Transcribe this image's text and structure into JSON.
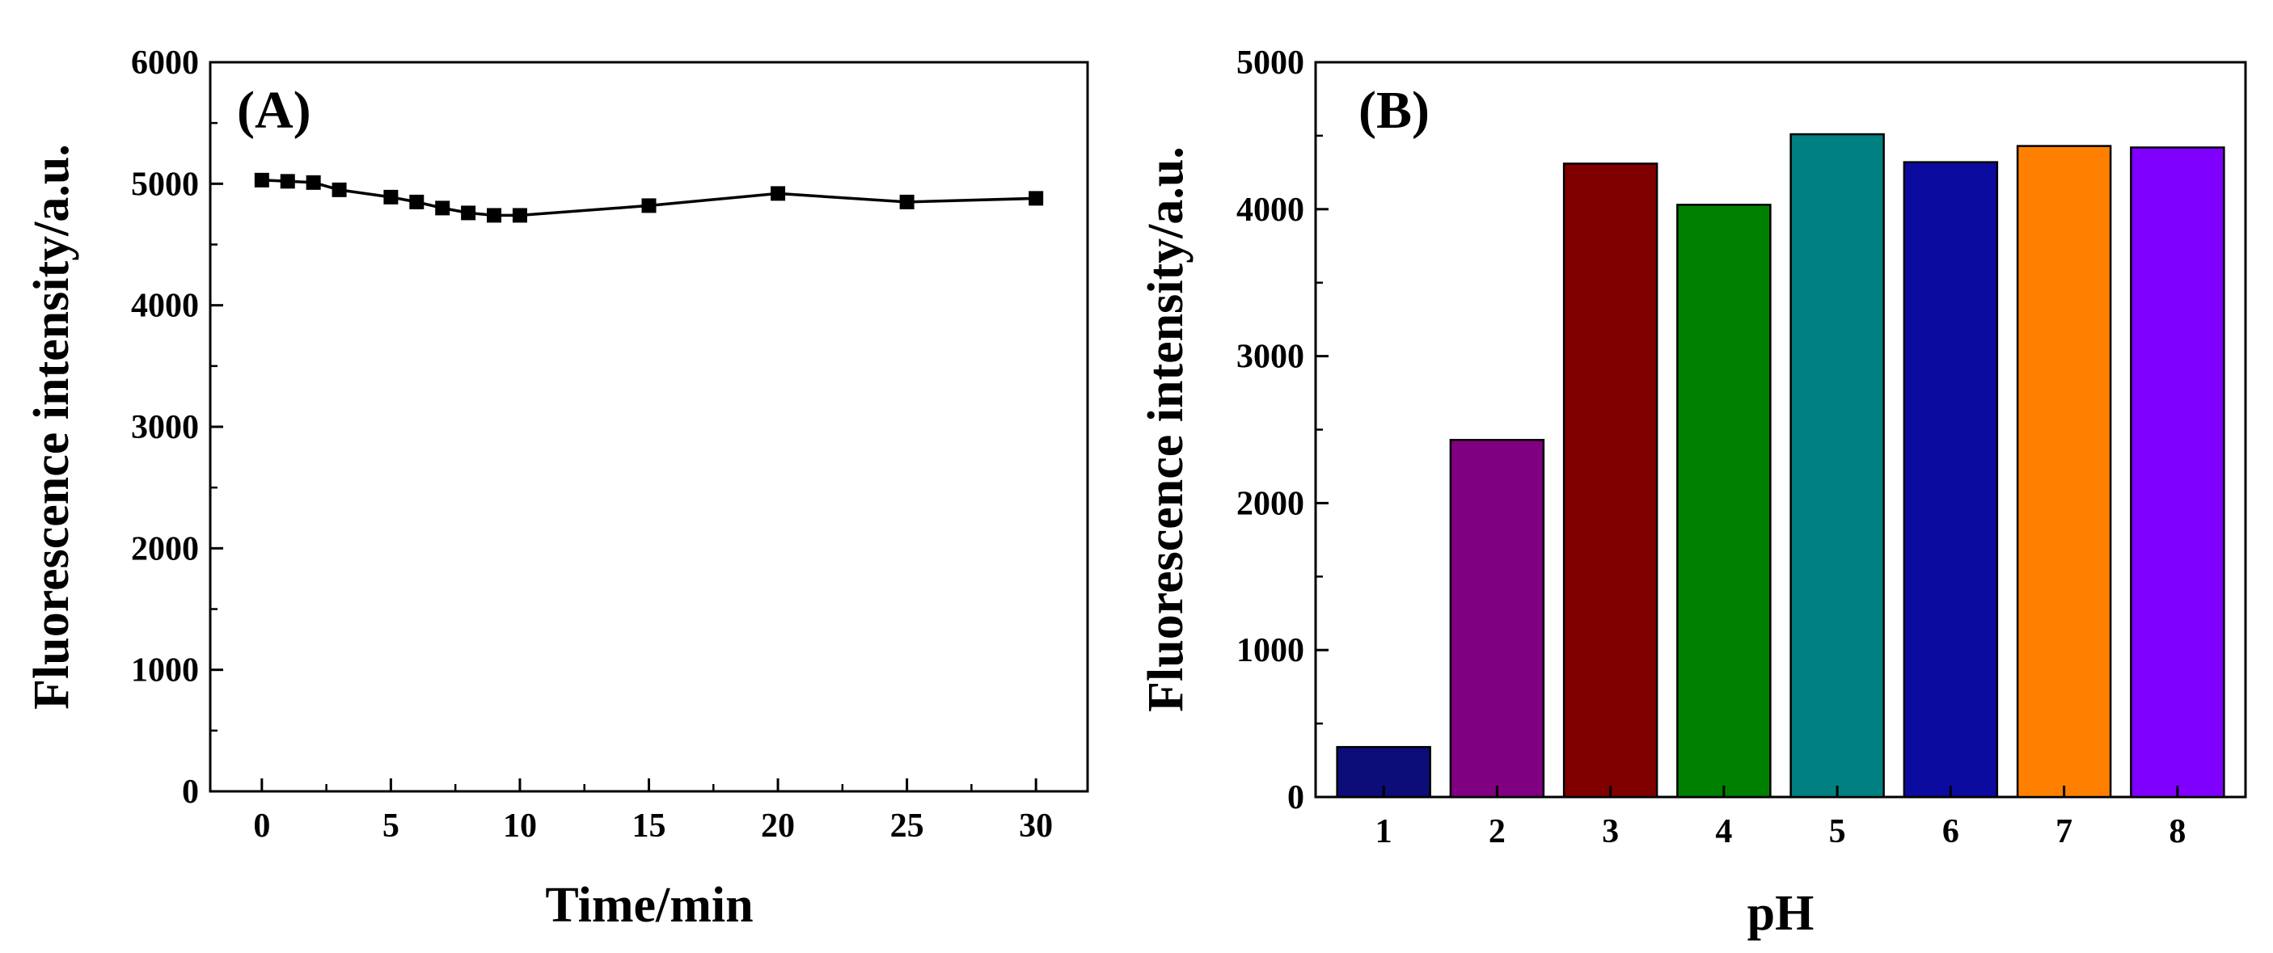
{
  "chart_data": [
    {
      "type": "line",
      "panel_label": "(A)",
      "title": "",
      "xlabel": "Time/min",
      "ylabel": "Fluorescence intensity/a.u.",
      "xlim": [
        -2,
        32
      ],
      "ylim": [
        0,
        6000
      ],
      "xticks": [
        0,
        5,
        10,
        15,
        20,
        25,
        30
      ],
      "xtick_labels": [
        "0",
        "5",
        "10",
        "15",
        "20",
        "25",
        "30"
      ],
      "yticks": [
        0,
        1000,
        2000,
        3000,
        4000,
        5000,
        6000
      ],
      "ytick_labels": [
        "0",
        "1000",
        "2000",
        "3000",
        "4000",
        "5000",
        "6000"
      ],
      "grid": false,
      "marker": "square",
      "series": [
        {
          "name": "intensity",
          "color": "#000000",
          "x": [
            0,
            1,
            2,
            3,
            5,
            6,
            7,
            8,
            9,
            10,
            15,
            20,
            25,
            30
          ],
          "values": [
            5030,
            5020,
            5010,
            4950,
            4890,
            4850,
            4800,
            4760,
            4740,
            4740,
            4820,
            4920,
            4850,
            4880
          ]
        }
      ]
    },
    {
      "type": "bar",
      "panel_label": "(B)",
      "title": "",
      "xlabel": "pH",
      "ylabel": "Fluorescence intensity/a.u.",
      "ylim": [
        0,
        5000
      ],
      "yticks": [
        0,
        1000,
        2000,
        3000,
        4000,
        5000
      ],
      "ytick_labels": [
        "0",
        "1000",
        "2000",
        "3000",
        "4000",
        "5000"
      ],
      "grid": false,
      "categories": [
        "1",
        "2",
        "3",
        "4",
        "5",
        "6",
        "7",
        "8"
      ],
      "values": [
        340,
        2430,
        4310,
        4030,
        4510,
        4320,
        4430,
        4420
      ],
      "colors": [
        "#0d0d7a",
        "#7f0080",
        "#800000",
        "#008000",
        "#008080",
        "#0b0ba0",
        "#ff8000",
        "#8000ff"
      ]
    }
  ]
}
